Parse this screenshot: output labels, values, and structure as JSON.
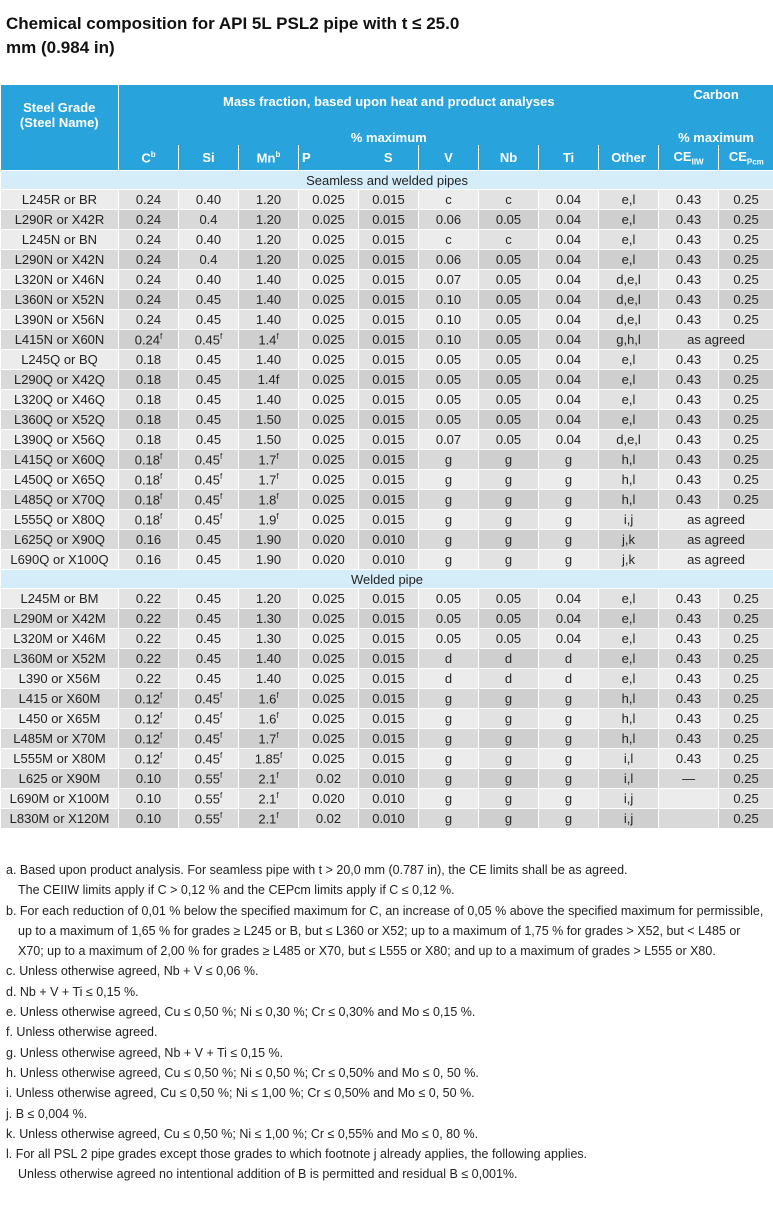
{
  "title": "Chemical composition for API 5L PSL2 pipe with t ≤ 25.0 mm (0.984 in)",
  "header": {
    "grade_line1": "Steel Grade",
    "grade_line2": "(Steel Name)",
    "mass_fraction": "Mass fraction, based upon heat and product analyses",
    "pct_max": "% maximum",
    "carbon": "Carbon",
    "carbon_pct_max": "% maximum",
    "columns": [
      {
        "v": "C",
        "sup": "b"
      },
      {
        "v": "Si"
      },
      {
        "v": "Mn",
        "sup": "b"
      },
      {
        "v": "P"
      },
      {
        "v": "S"
      },
      {
        "v": "V"
      },
      {
        "v": "Nb"
      },
      {
        "v": "Ti"
      },
      {
        "v": "Other"
      },
      {
        "v": "CE",
        "sub": "IIW"
      },
      {
        "v": "CE",
        "sub": "Pcm"
      }
    ]
  },
  "sections": [
    {
      "title": "Seamless and welded pipes",
      "rows": [
        {
          "grade": "L245R or BR",
          "cells": [
            "0.24",
            "0.40",
            "1.20",
            "0.025",
            "0.015",
            "c",
            "c",
            "0.04",
            "e,l",
            "0.43",
            "0.25"
          ]
        },
        {
          "grade": "L290R or X42R",
          "cells": [
            "0.24",
            "0.4",
            "1.20",
            "0.025",
            "0.015",
            "0.06",
            "0.05",
            "0.04",
            "e,l",
            "0.43",
            "0.25"
          ]
        },
        {
          "grade": "L245N or BN",
          "cells": [
            "0.24",
            "0.40",
            "1.20",
            "0.025",
            "0.015",
            "c",
            "c",
            "0.04",
            "e,l",
            "0.43",
            "0.25"
          ]
        },
        {
          "grade": "L290N or X42N",
          "cells": [
            "0.24",
            "0.4",
            "1.20",
            "0.025",
            "0.015",
            "0.06",
            "0.05",
            "0.04",
            "e,l",
            "0.43",
            "0.25"
          ]
        },
        {
          "grade": "L320N or X46N",
          "cells": [
            "0.24",
            "0.40",
            "1.40",
            "0.025",
            "0.015",
            "0.07",
            "0.05",
            "0.04",
            "d,e,l",
            "0.43",
            "0.25"
          ]
        },
        {
          "grade": "L360N or X52N",
          "cells": [
            "0.24",
            "0.45",
            "1.40",
            "0.025",
            "0.015",
            "0.10",
            "0.05",
            "0.04",
            "d,e,l",
            "0.43",
            "0.25"
          ]
        },
        {
          "grade": "L390N or X56N",
          "cells": [
            "0.24",
            "0.45",
            "1.40",
            "0.025",
            "0.015",
            "0.10",
            "0.05",
            "0.04",
            "d,e,l",
            "0.43",
            "0.25"
          ]
        },
        {
          "grade": "L415N or X60N",
          "cells": [
            {
              "v": "0.24",
              "sup": "f"
            },
            {
              "v": "0.45",
              "sup": "f"
            },
            {
              "v": "1.4",
              "sup": "f"
            },
            "0.025",
            "0.015",
            "0.10",
            "0.05",
            "0.04",
            "g,h,l",
            {
              "v": "as agreed",
              "span": 2
            }
          ]
        },
        {
          "grade": "L245Q or BQ",
          "cells": [
            "0.18",
            "0.45",
            "1.40",
            "0.025",
            "0.015",
            "0.05",
            "0.05",
            "0.04",
            "e,l",
            "0.43",
            "0.25"
          ]
        },
        {
          "grade": "L290Q or X42Q",
          "cells": [
            "0.18",
            "0.45",
            "1.4f",
            "0.025",
            "0.015",
            "0.05",
            "0.05",
            "0.04",
            "e,l",
            "0.43",
            "0.25"
          ]
        },
        {
          "grade": "L320Q or X46Q",
          "cells": [
            "0.18",
            "0.45",
            "1.40",
            "0.025",
            "0.015",
            "0.05",
            "0.05",
            "0.04",
            "e,l",
            "0.43",
            "0.25"
          ]
        },
        {
          "grade": "L360Q or X52Q",
          "cells": [
            "0.18",
            "0.45",
            "1.50",
            "0.025",
            "0.015",
            "0.05",
            "0.05",
            "0.04",
            "e,l",
            "0.43",
            "0.25"
          ]
        },
        {
          "grade": "L390Q or X56Q",
          "cells": [
            "0.18",
            "0.45",
            "1.50",
            "0.025",
            "0.015",
            "0.07",
            "0.05",
            "0.04",
            "d,e,l",
            "0.43",
            "0.25"
          ]
        },
        {
          "grade": "L415Q or X60Q",
          "cells": [
            {
              "v": "0.18",
              "sup": "f"
            },
            {
              "v": "0.45",
              "sup": "f"
            },
            {
              "v": "1.7",
              "sup": "f"
            },
            "0.025",
            "0.015",
            "g",
            "g",
            "g",
            "h,l",
            "0.43",
            "0.25"
          ]
        },
        {
          "grade": "L450Q or X65Q",
          "cells": [
            {
              "v": "0.18",
              "sup": "f"
            },
            {
              "v": "0.45",
              "sup": "f"
            },
            {
              "v": "1.7",
              "sup": "f"
            },
            "0.025",
            "0.015",
            "g",
            "g",
            "g",
            "h,l",
            "0.43",
            "0.25"
          ]
        },
        {
          "grade": "L485Q or X70Q",
          "cells": [
            {
              "v": "0.18",
              "sup": "f"
            },
            {
              "v": "0.45",
              "sup": "f"
            },
            {
              "v": "1.8",
              "sup": "f"
            },
            "0.025",
            "0.015",
            "g",
            "g",
            "g",
            "h,l",
            "0.43",
            "0.25"
          ]
        },
        {
          "grade": "L555Q or X80Q",
          "cells": [
            {
              "v": "0.18",
              "sup": "f"
            },
            {
              "v": "0.45",
              "sup": "f"
            },
            {
              "v": "1.9",
              "sup": "f"
            },
            "0.025",
            "0.015",
            "g",
            "g",
            "g",
            "i,j",
            {
              "v": "as agreed",
              "span": 2
            }
          ]
        },
        {
          "grade": "L625Q or X90Q",
          "cells": [
            "0.16",
            "0.45",
            "1.90",
            "0.020",
            "0.010",
            "g",
            "g",
            "g",
            "j,k",
            {
              "v": "as agreed",
              "span": 2
            }
          ]
        },
        {
          "grade": "L690Q or X100Q",
          "cells": [
            "0.16",
            "0.45",
            "1.90",
            "0.020",
            "0.010",
            "g",
            "g",
            "g",
            "j,k",
            {
              "v": "as agreed",
              "span": 2
            }
          ]
        }
      ]
    },
    {
      "title": "Welded pipe",
      "rows": [
        {
          "grade": "L245M or BM",
          "cells": [
            "0.22",
            "0.45",
            "1.20",
            "0.025",
            "0.015",
            "0.05",
            "0.05",
            "0.04",
            "e,l",
            "0.43",
            "0.25"
          ]
        },
        {
          "grade": "L290M or X42M",
          "cells": [
            "0.22",
            "0.45",
            "1.30",
            "0.025",
            "0.015",
            "0.05",
            "0.05",
            "0.04",
            "e,l",
            "0.43",
            "0.25"
          ]
        },
        {
          "grade": "L320M or X46M",
          "cells": [
            "0.22",
            "0.45",
            "1.30",
            "0.025",
            "0.015",
            "0.05",
            "0.05",
            "0.04",
            "e,l",
            "0.43",
            "0.25"
          ]
        },
        {
          "grade": "L360M or X52M",
          "cells": [
            "0.22",
            "0.45",
            "1.40",
            "0.025",
            "0.015",
            "d",
            "d",
            "d",
            "e,l",
            "0.43",
            "0.25"
          ]
        },
        {
          "grade": "L390 or X56M",
          "cells": [
            "0.22",
            "0.45",
            "1.40",
            "0.025",
            "0.015",
            "d",
            "d",
            "d",
            "e,l",
            "0.43",
            "0.25"
          ]
        },
        {
          "grade": "L415 or X60M",
          "cells": [
            {
              "v": "0.12",
              "sup": "f"
            },
            {
              "v": "0.45",
              "sup": "f"
            },
            {
              "v": "1.6",
              "sup": "f"
            },
            "0.025",
            "0.015",
            "g",
            "g",
            "g",
            "h,l",
            "0.43",
            "0.25"
          ]
        },
        {
          "grade": "L450 or X65M",
          "cells": [
            {
              "v": "0.12",
              "sup": "f"
            },
            {
              "v": "0.45",
              "sup": "f"
            },
            {
              "v": "1.6",
              "sup": "f"
            },
            "0.025",
            "0.015",
            "g",
            "g",
            "g",
            "h,l",
            "0.43",
            "0.25"
          ]
        },
        {
          "grade": "L485M or X70M",
          "cells": [
            {
              "v": "0.12",
              "sup": "f"
            },
            {
              "v": "0.45",
              "sup": "f"
            },
            {
              "v": "1.7",
              "sup": "f"
            },
            "0.025",
            "0.015",
            "g",
            "g",
            "g",
            "h,l",
            "0.43",
            "0.25"
          ]
        },
        {
          "grade": "L555M or X80M",
          "cells": [
            {
              "v": "0.12",
              "sup": "f"
            },
            {
              "v": "0.45",
              "sup": "f"
            },
            {
              "v": "1.85",
              "sup": "f"
            },
            "0.025",
            "0.015",
            "g",
            "g",
            "g",
            "i,l",
            "0.43",
            "0.25"
          ]
        },
        {
          "grade": "L625 or X90M",
          "cells": [
            "0.10",
            {
              "v": "0.55",
              "sup": "f"
            },
            {
              "v": "2.1",
              "sup": "f"
            },
            "0.02",
            "0.010",
            "g",
            "g",
            "g",
            "i,l",
            "—",
            "0.25"
          ]
        },
        {
          "grade": "L690M or X100M",
          "cells": [
            "0.10",
            {
              "v": "0.55",
              "sup": "f"
            },
            {
              "v": "2.1",
              "sup": "f"
            },
            "0.020",
            "0.010",
            "g",
            "g",
            "g",
            "i,j",
            "",
            "0.25"
          ]
        },
        {
          "grade": "L830M or X120M",
          "cells": [
            "0.10",
            {
              "v": "0.55",
              "sup": "f"
            },
            {
              "v": "2.1",
              "sup": "f"
            },
            "0.02",
            "0.010",
            "g",
            "g",
            "g",
            "i,j",
            "",
            "0.25"
          ]
        }
      ]
    }
  ],
  "footnotes": [
    "a. Based upon product analysis. For seamless pipe with t > 20,0 mm (0.787 in), the CE limits shall be as agreed.",
    "The CEIIW limits apply if C > 0,12 % and the CEPcm limits apply if C ≤ 0,12 %.",
    "b. For each reduction of 0,01 % below the specified maximum for C, an increase of 0,05 % above the specified maximum for permissible, up to a maximum of 1,65 % for grades ≥ L245 or B, but ≤ L360 or X52; up to a maximum of 1,75 % for grades > X52, but < L485 or X70; up to a maximum of 2,00 % for grades ≥ L485 or X70, but ≤ L555 or X80; and up to a maximum of grades > L555 or X80.",
    "c. Unless otherwise agreed, Nb + V ≤ 0,06 %.",
    "d. Nb + V + Ti ≤ 0,15 %.",
    "e. Unless otherwise agreed, Cu ≤ 0,50 %; Ni ≤ 0,30 %; Cr ≤ 0,30% and Mo ≤ 0,15 %.",
    "f. Unless otherwise agreed.",
    "g. Unless otherwise agreed, Nb + V + Ti ≤ 0,15 %.",
    "h. Unless otherwise agreed, Cu ≤ 0,50 %; Ni ≤ 0,50 %; Cr ≤ 0,50% and Mo ≤ 0, 50 %.",
    "i. Unless otherwise agreed, Cu ≤ 0,50 %; Ni ≤ 1,00 %; Cr ≤ 0,50% and Mo ≤ 0, 50 %.",
    "j. B ≤ 0,004 %.",
    "k. Unless otherwise agreed, Cu ≤ 0,50 %; Ni ≤ 1,00 %; Cr ≤ 0,55% and Mo ≤ 0, 80 %.",
    "l. For all PSL 2 pipe grades except those grades to which footnote j already applies, the following applies.",
    "Unless otherwise agreed no intentional addition of B is permitted and residual B ≤ 0,001%."
  ],
  "colors": {
    "header_bg": "#29a3dc",
    "section_bg": "#d5edf9",
    "row_light": "#ececec",
    "row_dark": "#d9d9d9"
  }
}
